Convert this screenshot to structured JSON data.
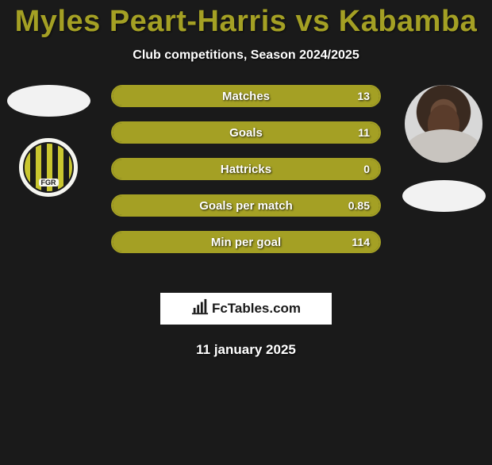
{
  "title": "Myles Peart-Harris vs Kabamba",
  "subtitle": "Club competitions, Season 2024/2025",
  "date": "11 january 2025",
  "branding": "FcTables.com",
  "colors": {
    "accent": "#a4a024",
    "background": "#1a1a1a",
    "text": "#ffffff",
    "branding_bg": "#ffffff",
    "branding_text": "#1a1a1a"
  },
  "left": {
    "has_photo": false,
    "crest_text": "FGR"
  },
  "right": {
    "has_photo": true
  },
  "stats": [
    {
      "label": "Matches",
      "value": "13",
      "fill_pct": 100
    },
    {
      "label": "Goals",
      "value": "11",
      "fill_pct": 100
    },
    {
      "label": "Hattricks",
      "value": "0",
      "fill_pct": 100
    },
    {
      "label": "Goals per match",
      "value": "0.85",
      "fill_pct": 100
    },
    {
      "label": "Min per goal",
      "value": "114",
      "fill_pct": 100
    }
  ],
  "typography": {
    "title_fontsize": 38,
    "subtitle_fontsize": 16,
    "bar_label_fontsize": 15,
    "bar_value_fontsize": 14,
    "date_fontsize": 17
  }
}
